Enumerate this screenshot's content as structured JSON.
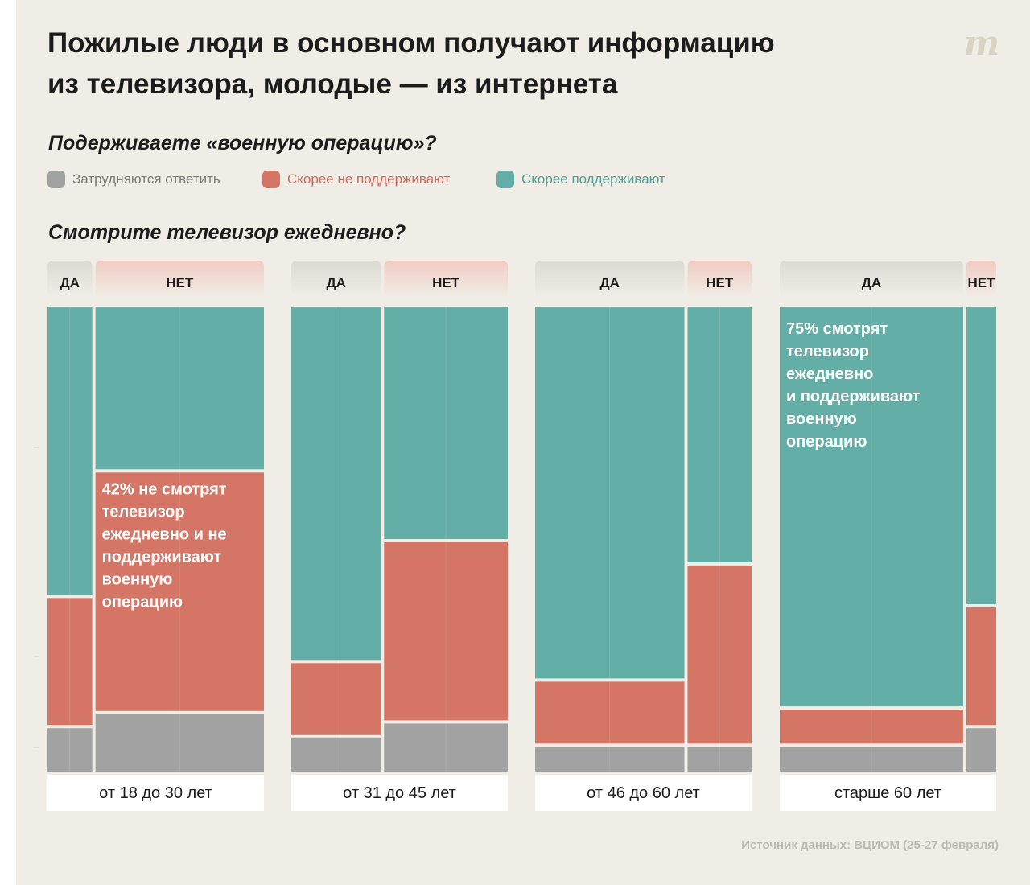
{
  "title_line1": "Пожилые люди в основном получают информацию",
  "title_line2": "из телевизора, молодые — из интернета",
  "logo_glyph": "m",
  "question_support": "Подерживаете «военную операцию»?",
  "question_tv": "Смотрите телевизор ежедневно?",
  "legend": [
    {
      "label": "Затрудняются ответить",
      "color": "#a2a2a2",
      "text_color": "#7b7b7b"
    },
    {
      "label": "Скорее не поддерживают",
      "color": "#d47565",
      "text_color": "#d0695b"
    },
    {
      "label": "Скорее поддерживают",
      "color": "#63aea6",
      "text_color": "#4f9f97"
    }
  ],
  "source": "Источник данных: ВЦИОМ (25-27 февраля)",
  "colors": {
    "hard": "#a2a2a2",
    "against": "#d47565",
    "support": "#63aea6",
    "yes_tab": "#dcdad4",
    "no_tab": "#f1cbc3",
    "background": "#efede5"
  },
  "chart_data": {
    "type": "marimekko",
    "segments_order": [
      "Затрудняются ответить",
      "Скорее не поддерживают",
      "Скорее поддерживают"
    ],
    "groups": [
      {
        "name": "от 18 до 30 лет",
        "columns": [
          {
            "label": "ДА",
            "share_pct": 21,
            "values_pct": [
              10,
              28,
              62
            ]
          },
          {
            "label": "НЕТ",
            "share_pct": 79,
            "values_pct": [
              13,
              52,
              35
            ]
          }
        ]
      },
      {
        "name": "от 31 до 45 лет",
        "columns": [
          {
            "label": "ДА",
            "share_pct": 42,
            "values_pct": [
              8,
              16,
              76
            ]
          },
          {
            "label": "НЕТ",
            "share_pct": 58,
            "values_pct": [
              11,
              39,
              50
            ]
          }
        ]
      },
      {
        "name": "от 46 до 60 лет",
        "columns": [
          {
            "label": "ДА",
            "share_pct": 70,
            "values_pct": [
              6,
              14,
              80
            ]
          },
          {
            "label": "НЕТ",
            "share_pct": 30,
            "values_pct": [
              6,
              39,
              55
            ]
          }
        ]
      },
      {
        "name": "старше 60 лет",
        "columns": [
          {
            "label": "ДА",
            "share_pct": 86,
            "values_pct": [
              6,
              8,
              86
            ]
          },
          {
            "label": "НЕТ",
            "share_pct": 14,
            "values_pct": [
              10,
              26,
              64
            ]
          }
        ]
      }
    ],
    "annotations": [
      {
        "group": 0,
        "column": 1,
        "segment": 1,
        "text_lines": [
          "42% не смотрят",
          "телевизор",
          "ежедневно и не",
          "поддерживают",
          "военную",
          "операцию"
        ]
      },
      {
        "group": 3,
        "column": 0,
        "segment": 2,
        "text_lines": [
          "75% смотрят",
          "телевизор",
          "ежедневно",
          "и поддерживают",
          "военную",
          "операцию"
        ]
      }
    ]
  }
}
